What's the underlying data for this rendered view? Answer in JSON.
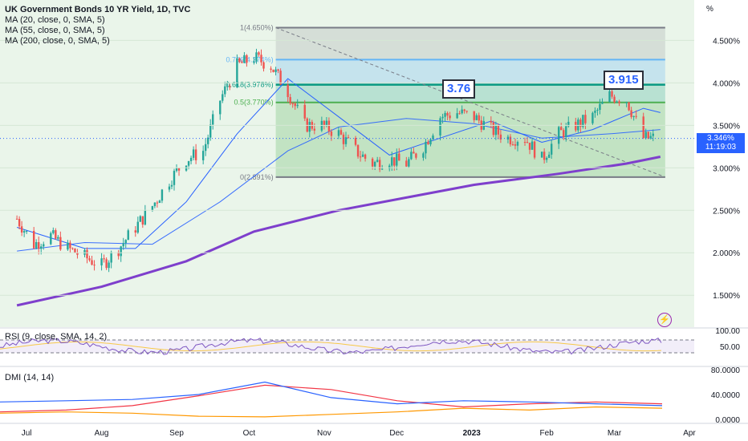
{
  "chart_data": {
    "type": "candlestick",
    "title": "UK Government Bonds 10 YR Yield, 1D, TVC",
    "indicators": [
      "MA (20, close, 0, SMA, 5)",
      "MA (55, close, 0, SMA, 5)",
      "MA (200, close, 0, SMA, 5)"
    ],
    "y_axis_unit": "%",
    "y_ticks": [
      "4.500%",
      "4.000%",
      "3.500%",
      "3.000%",
      "2.500%",
      "2.000%",
      "1.500%"
    ],
    "x_ticks": [
      "Jul",
      "Aug",
      "Sep",
      "Oct",
      "Nov",
      "Dec",
      "2023",
      "Feb",
      "Mar",
      "Apr"
    ],
    "ylim": [
      1.2,
      4.9
    ],
    "last_price": "3.346%",
    "countdown": "11:19:03",
    "price_series": [
      [
        "2022-06-27",
        2.4
      ],
      [
        "2022-07-04",
        2.1
      ],
      [
        "2022-07-11",
        2.2
      ],
      [
        "2022-07-18",
        2.05
      ],
      [
        "2022-07-25",
        1.95
      ],
      [
        "2022-08-01",
        1.85
      ],
      [
        "2022-08-08",
        2.05
      ],
      [
        "2022-08-15",
        2.3
      ],
      [
        "2022-08-22",
        2.55
      ],
      [
        "2022-08-29",
        2.85
      ],
      [
        "2022-09-05",
        3.1
      ],
      [
        "2022-09-12",
        3.2
      ],
      [
        "2022-09-19",
        3.8
      ],
      [
        "2022-09-26",
        4.2
      ],
      [
        "2022-10-03",
        4.3
      ],
      [
        "2022-10-10",
        4.2
      ],
      [
        "2022-10-17",
        3.9
      ],
      [
        "2022-10-24",
        3.5
      ],
      [
        "2022-10-31",
        3.5
      ],
      [
        "2022-11-07",
        3.4
      ],
      [
        "2022-11-14",
        3.2
      ],
      [
        "2022-11-21",
        3.05
      ],
      [
        "2022-11-28",
        3.1
      ],
      [
        "2022-12-05",
        3.05
      ],
      [
        "2022-12-12",
        3.25
      ],
      [
        "2022-12-19",
        3.6
      ],
      [
        "2022-12-26",
        3.65
      ],
      [
        "2023-01-02",
        3.6
      ],
      [
        "2023-01-09",
        3.45
      ],
      [
        "2023-01-16",
        3.35
      ],
      [
        "2023-01-23",
        3.35
      ],
      [
        "2023-01-30",
        3.1
      ],
      [
        "2023-02-06",
        3.4
      ],
      [
        "2023-02-13",
        3.5
      ],
      [
        "2023-02-20",
        3.6
      ],
      [
        "2023-02-27",
        3.85
      ],
      [
        "2023-03-06",
        3.8
      ],
      [
        "2023-03-13",
        3.35
      ],
      [
        "2023-03-20",
        3.35
      ]
    ],
    "ma20": [
      [
        "2022-06-27",
        2.3
      ],
      [
        "2022-07-25",
        2.05
      ],
      [
        "2022-08-15",
        2.05
      ],
      [
        "2022-09-05",
        2.6
      ],
      [
        "2022-09-26",
        3.4
      ],
      [
        "2022-10-17",
        4.05
      ],
      [
        "2022-11-07",
        3.6
      ],
      [
        "2022-11-28",
        3.15
      ],
      [
        "2022-12-19",
        3.35
      ],
      [
        "2023-01-09",
        3.55
      ],
      [
        "2023-01-30",
        3.3
      ],
      [
        "2023-02-20",
        3.45
      ],
      [
        "2023-03-13",
        3.7
      ],
      [
        "2023-03-20",
        3.65
      ]
    ],
    "ma55": [
      [
        "2022-06-27",
        2.02
      ],
      [
        "2022-07-25",
        2.12
      ],
      [
        "2022-08-22",
        2.1
      ],
      [
        "2022-09-19",
        2.6
      ],
      [
        "2022-10-17",
        3.2
      ],
      [
        "2022-11-07",
        3.48
      ],
      [
        "2022-12-05",
        3.58
      ],
      [
        "2023-01-02",
        3.52
      ],
      [
        "2023-01-30",
        3.35
      ],
      [
        "2023-02-27",
        3.4
      ],
      [
        "2023-03-20",
        3.45
      ]
    ],
    "ma200": [
      [
        "2022-06-27",
        1.38
      ],
      [
        "2022-08-01",
        1.6
      ],
      [
        "2022-09-05",
        1.9
      ],
      [
        "2022-10-03",
        2.25
      ],
      [
        "2022-11-07",
        2.5
      ],
      [
        "2022-12-05",
        2.65
      ],
      [
        "2023-01-02",
        2.8
      ],
      [
        "2023-02-06",
        2.93
      ],
      [
        "2023-03-06",
        3.05
      ],
      [
        "2023-03-20",
        3.13
      ]
    ],
    "fibonacci": {
      "levels": [
        {
          "label": "1(4.650%)",
          "value": 4.65
        },
        {
          "label": "0.786(4.274%)",
          "value": 4.274
        },
        {
          "label": "0.618(3.978%)",
          "value": 3.978
        },
        {
          "label": "0.5(3.770%)",
          "value": 3.77
        },
        {
          "label": "0(2.891%)",
          "value": 2.891
        }
      ]
    },
    "annotations": [
      {
        "text": "3.76",
        "value": 3.76
      },
      {
        "text": "3.915",
        "value": 3.915
      }
    ],
    "rsi": {
      "title": "RSI (9, close, SMA, 14, 2)",
      "ticks": [
        "100.00",
        "50.00"
      ],
      "bands": [
        70,
        30
      ]
    },
    "dmi": {
      "title": "DMI (14, 14)",
      "ticks": [
        "80.0000",
        "40.0000",
        "0.0000"
      ],
      "series": [
        {
          "color": "#f23645",
          "values": [
            12,
            15,
            22,
            38,
            55,
            48,
            30,
            20,
            25,
            28,
            25
          ]
        },
        {
          "color": "#2962ff",
          "values": [
            28,
            30,
            32,
            40,
            60,
            35,
            25,
            30,
            28,
            25,
            22
          ]
        },
        {
          "color": "#ff9800",
          "values": [
            10,
            12,
            10,
            5,
            4,
            8,
            12,
            18,
            15,
            20,
            18
          ]
        }
      ]
    }
  },
  "colors": {
    "up": "#26a69a",
    "down": "#ef5350",
    "ma_blue": "#2962ff",
    "ma200": "#7e3fcc",
    "fib_top": "#787b86",
    "fib_0786": "#64b5f6",
    "fib_0618": "#089981",
    "fib_05": "#4caf50",
    "fib_0": "#787b86"
  },
  "icons": [
    "lightning-icon"
  ]
}
